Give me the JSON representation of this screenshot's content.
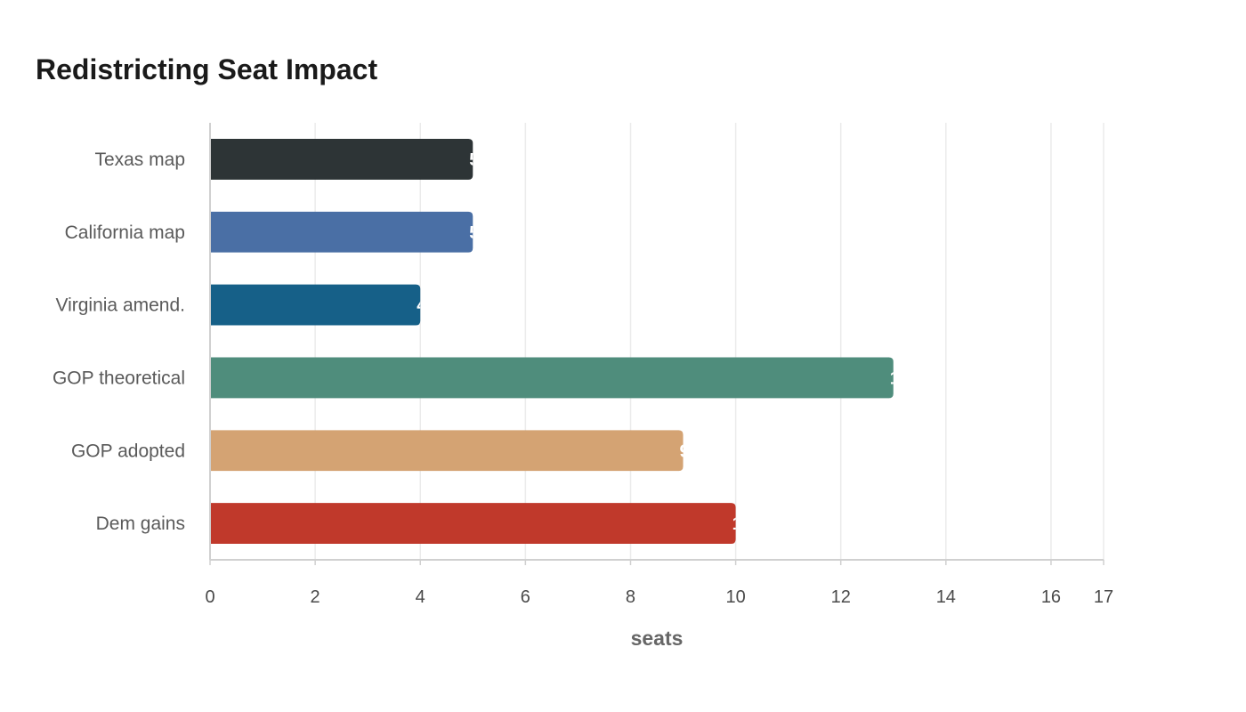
{
  "chart_data": {
    "type": "bar",
    "orientation": "horizontal",
    "title": "Redistricting Seat Impact",
    "xlabel": "seats",
    "ylabel": "",
    "categories": [
      "Texas map",
      "California map",
      "Virginia amend.",
      "GOP theoretical",
      "GOP adopted",
      "Dem gains"
    ],
    "values": [
      5,
      5,
      4,
      13,
      9,
      10
    ],
    "colors": [
      "#2d3436",
      "#4a6fa5",
      "#166088",
      "#4f8d7c",
      "#d4a373",
      "#c0392b"
    ],
    "xlim": [
      0,
      17
    ],
    "xticks": [
      0,
      2,
      4,
      6,
      8,
      10,
      12,
      14,
      16,
      17
    ],
    "grid": true,
    "legend": "none"
  }
}
